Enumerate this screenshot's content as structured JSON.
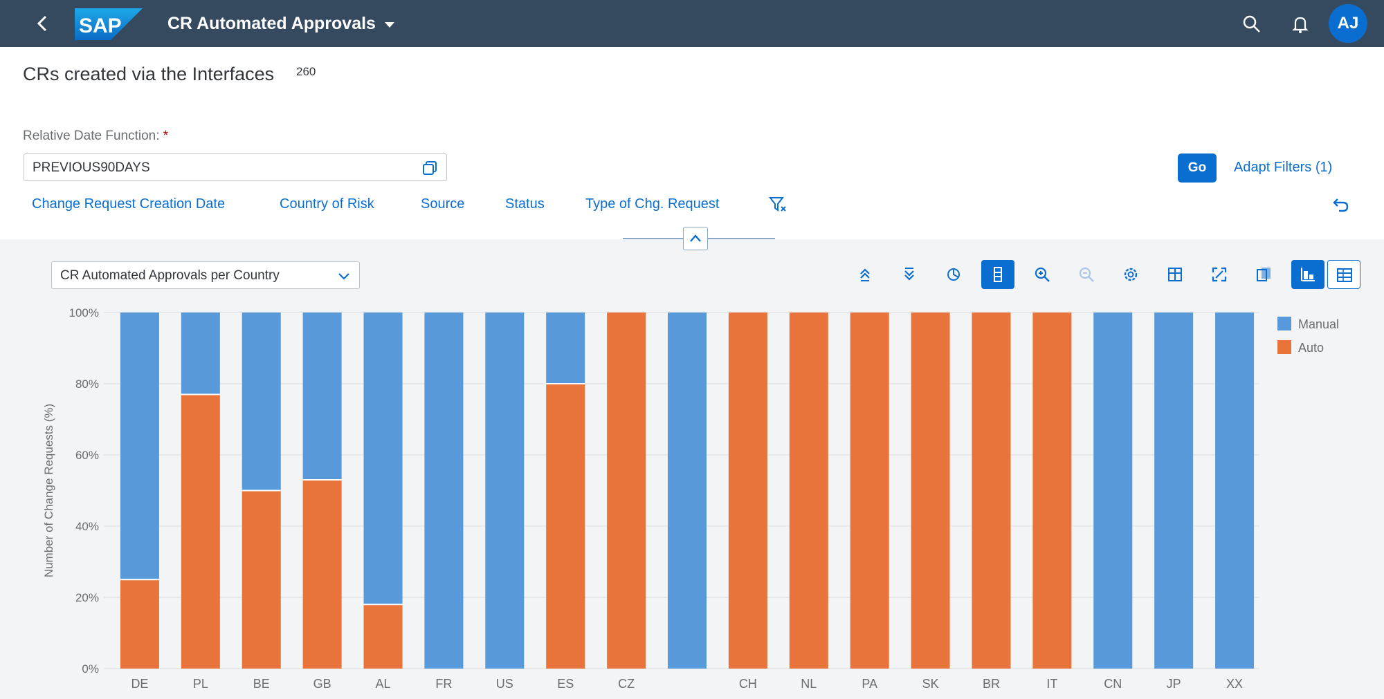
{
  "shell": {
    "app_title": "CR Automated Approvals",
    "avatar_initials": "AJ",
    "logo_text": "SAP"
  },
  "header": {
    "title": "CRs created via the Interfaces",
    "count": "260",
    "date_function_label": "Relative Date Function:",
    "required_mark": "*",
    "date_function_value": "PREVIOUS90DAYS",
    "go_label": "Go",
    "adapt_filters_label": "Adapt Filters (1)",
    "filters": [
      "Change Request Creation Date",
      "Country of Risk",
      "Source",
      "Status",
      "Type of Chg. Request"
    ]
  },
  "chart_toolbar": {
    "chart_selector_value": "CR Automated Approvals per Country",
    "icons": [
      "drill-up-icon",
      "drill-down-icon",
      "legend-icon",
      "bar-view-icon",
      "zoom-in-icon",
      "zoom-out-icon",
      "settings-icon",
      "details-icon",
      "fullscreen-icon",
      "export-icon",
      "chart-view-icon",
      "table-view-icon"
    ]
  },
  "colors": {
    "manual": "#5899da",
    "auto": "#e8743b",
    "shell": "#354a5f",
    "accent": "#0a6ed1"
  },
  "chart_data": {
    "type": "bar",
    "stacked": true,
    "percent": true,
    "title": "",
    "ylabel": "Number of Change Requests (%)",
    "xlabel": "",
    "ylim": [
      0,
      100
    ],
    "yticks": [
      "0%",
      "20%",
      "40%",
      "60%",
      "80%",
      "100%"
    ],
    "categories": [
      "DE",
      "PL",
      "BE",
      "GB",
      "AL",
      "FR",
      "US",
      "ES",
      "CZ",
      "",
      "CH",
      "NL",
      "PA",
      "SK",
      "BR",
      "IT",
      "CN",
      "JP",
      "XX"
    ],
    "series": [
      {
        "name": "Manual",
        "values": [
          75,
          23,
          50,
          47,
          82,
          100,
          100,
          20,
          0,
          100,
          0,
          0,
          0,
          0,
          0,
          0,
          100,
          100,
          100
        ]
      },
      {
        "name": "Auto",
        "values": [
          25,
          77,
          50,
          53,
          18,
          0,
          0,
          80,
          100,
          0,
          100,
          100,
          100,
          100,
          100,
          100,
          0,
          0,
          0
        ]
      }
    ],
    "legend_position": "top-right",
    "grid": true
  }
}
